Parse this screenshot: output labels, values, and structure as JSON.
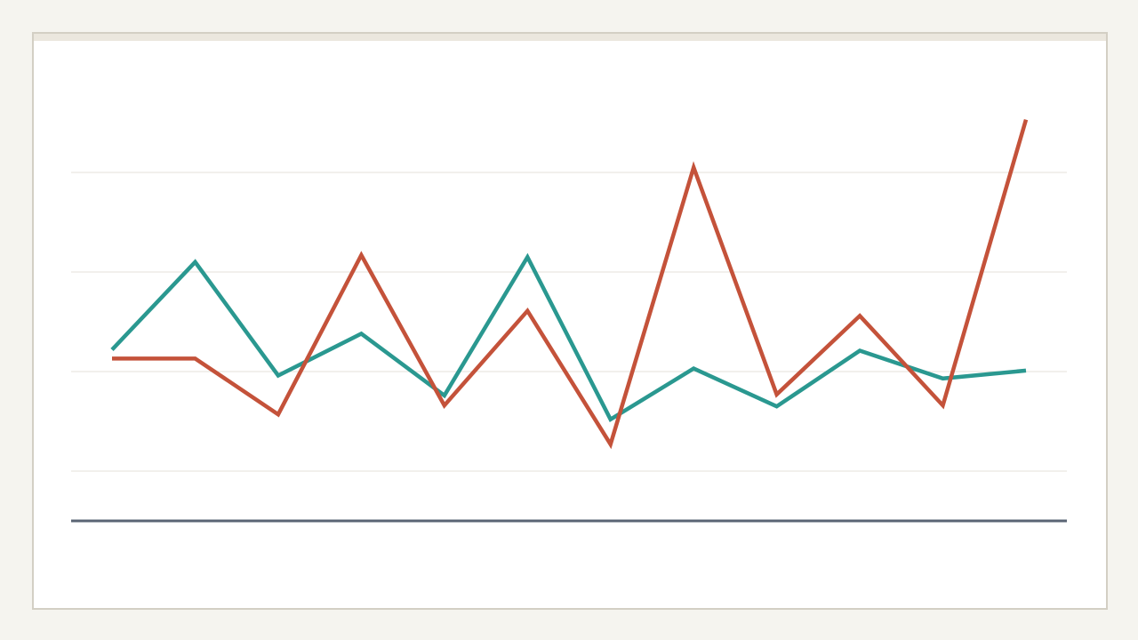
{
  "chart_data": {
    "type": "line",
    "title": "",
    "xlabel": "",
    "ylabel": "",
    "x": [
      1,
      2,
      3,
      4,
      5,
      6,
      7,
      8,
      9,
      10,
      11,
      12
    ],
    "ylim": [
      5,
      50
    ],
    "gridlines": [
      10,
      20,
      30,
      40
    ],
    "grid": true,
    "legend": "none",
    "series": [
      {
        "color": "#2a9890",
        "values": [
          22.2,
          31.0,
          19.6,
          23.8,
          17.6,
          31.5,
          15.2,
          20.3,
          16.5,
          22.1,
          19.3,
          20.1
        ]
      },
      {
        "color": "#c4523a",
        "values": [
          21.3,
          21.3,
          15.7,
          31.7,
          16.6,
          26.1,
          12.7,
          40.5,
          17.7,
          25.6,
          16.6,
          45.3
        ]
      }
    ],
    "colors": {
      "grid": "#e4e2d8",
      "axis": "#5a6474",
      "frame": "#d3cfc4",
      "background": "#f5f4ef"
    }
  }
}
